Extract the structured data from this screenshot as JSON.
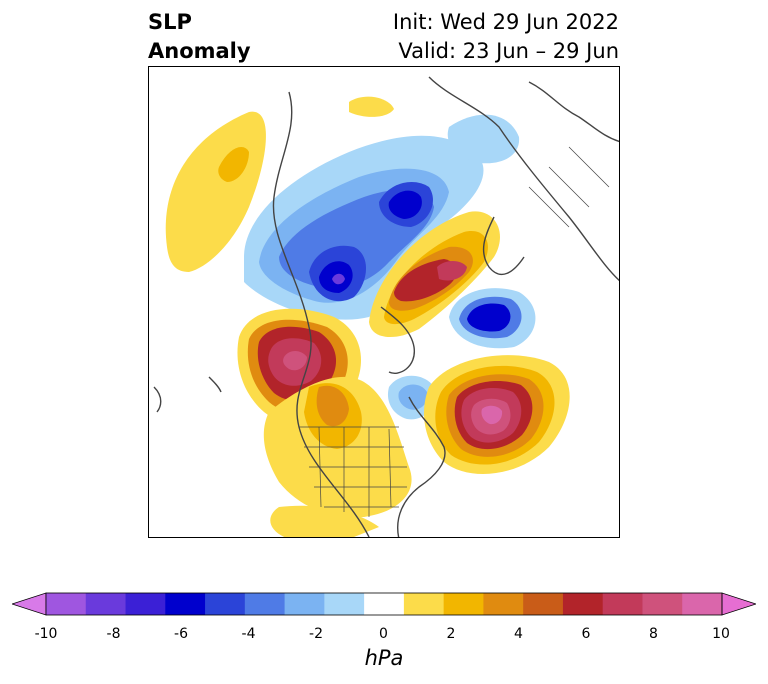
{
  "header": {
    "title_line1": "SLP",
    "title_line2": "Anomaly",
    "init": "Init: Wed 29 Jun 2022",
    "valid": "Valid: 23 Jun – 29 Jun"
  },
  "colorbar": {
    "label": "hPa",
    "ticks": [
      "-10",
      "-8",
      "-6",
      "-4",
      "-2",
      "0",
      "2",
      "4",
      "6",
      "8",
      "10"
    ],
    "colors": [
      "#d87ae8",
      "#9f56e0",
      "#6a3adc",
      "#3b20d6",
      "#0000cd",
      "#2b44d8",
      "#4f7be6",
      "#7bb3f2",
      "#a8d7f8",
      "#ffffff",
      "#fcdc4a",
      "#f2b600",
      "#e08b10",
      "#c95c18",
      "#b2242a",
      "#c23a5a",
      "#cf527c",
      "#da66ab",
      "#e66ed2"
    ]
  }
}
